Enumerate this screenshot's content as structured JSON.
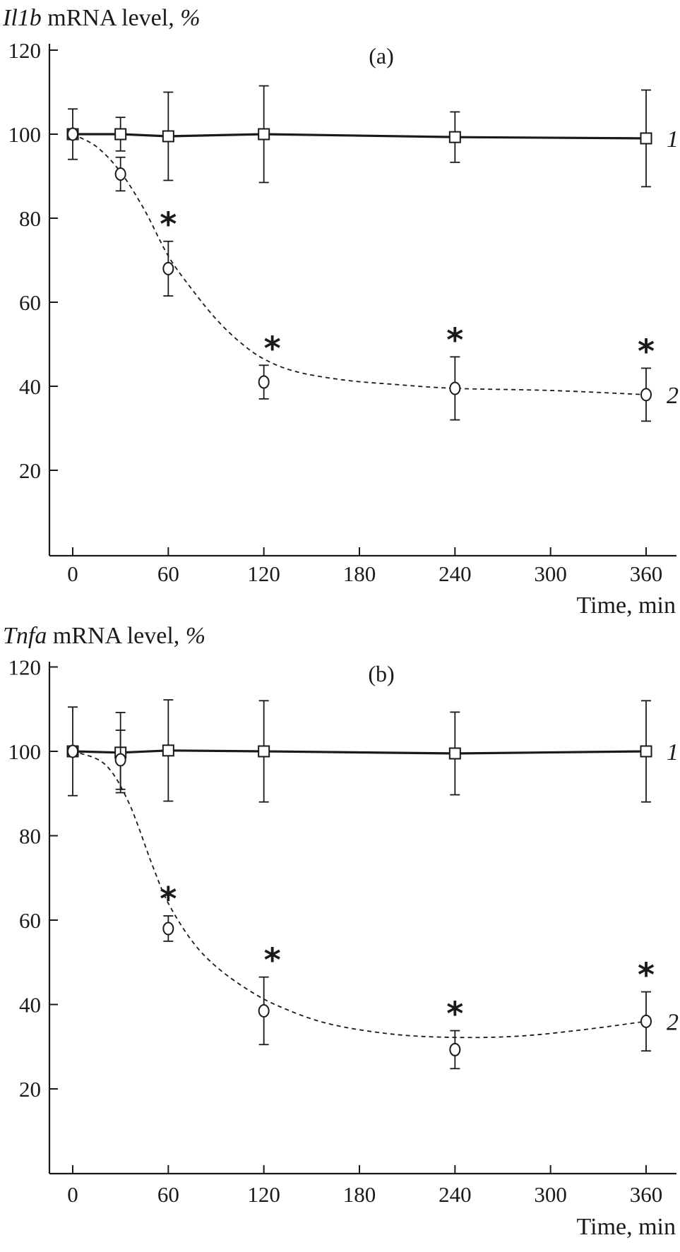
{
  "chart_data": [
    {
      "type": "line",
      "panel_label": "(a)",
      "ylabel_gene": "Il1b",
      "ylabel_rest": " mRNA level, %",
      "xlabel": "Time, min",
      "xticks": [
        0,
        60,
        120,
        180,
        240,
        300,
        360
      ],
      "yticks": [
        20,
        40,
        60,
        80,
        100,
        120
      ],
      "xlim": [
        -15,
        380
      ],
      "ylim": [
        0,
        120
      ],
      "grid": false,
      "series": [
        {
          "name": "1",
          "marker": "square",
          "line": "solid",
          "x": [
            0,
            30,
            60,
            120,
            240,
            360
          ],
          "y": [
            100,
            100,
            99.5,
            100,
            99.3,
            99
          ],
          "err": [
            6,
            4,
            10.5,
            11.5,
            6,
            11.5
          ]
        },
        {
          "name": "2",
          "marker": "circle",
          "line": "dashed",
          "x": [
            0,
            30,
            60,
            120,
            240,
            360
          ],
          "y": [
            100,
            90.5,
            68,
            41,
            39.5,
            38
          ],
          "err": [
            0,
            4,
            6.5,
            4,
            7.5,
            6.3
          ],
          "fit": [
            [
              0,
              100
            ],
            [
              15,
              97
            ],
            [
              30,
              91
            ],
            [
              45,
              82
            ],
            [
              60,
              71
            ],
            [
              75,
              63
            ],
            [
              90,
              56
            ],
            [
              105,
              50.5
            ],
            [
              120,
              46.5
            ],
            [
              140,
              43.5
            ],
            [
              170,
              41.5
            ],
            [
              200,
              40.5
            ],
            [
              240,
              39.5
            ],
            [
              300,
              39
            ],
            [
              360,
              38
            ]
          ],
          "significant": [
            60,
            120,
            240,
            360
          ]
        }
      ],
      "significance_marker": "*"
    },
    {
      "type": "line",
      "panel_label": "(b)",
      "ylabel_gene": "Tnfa",
      "ylabel_rest": " mRNA level, %",
      "xlabel": "Time, min",
      "xticks": [
        0,
        60,
        120,
        180,
        240,
        300,
        360
      ],
      "yticks": [
        20,
        40,
        60,
        80,
        100,
        120
      ],
      "xlim": [
        -15,
        380
      ],
      "ylim": [
        0,
        120
      ],
      "grid": false,
      "series": [
        {
          "name": "1",
          "marker": "square",
          "line": "solid",
          "x": [
            0,
            30,
            60,
            120,
            240,
            360
          ],
          "y": [
            100,
            99.7,
            100.2,
            100,
            99.5,
            100
          ],
          "err": [
            10.5,
            9.5,
            12,
            12,
            9.8,
            12
          ]
        },
        {
          "name": "2",
          "marker": "circle",
          "line": "dashed",
          "x": [
            0,
            30,
            60,
            120,
            240,
            360
          ],
          "y": [
            100,
            98,
            58,
            38.5,
            29.3,
            36
          ],
          "err": [
            0,
            7,
            3,
            8,
            4.5,
            7
          ],
          "fit": [
            [
              0,
              100
            ],
            [
              20,
              97
            ],
            [
              35,
              88
            ],
            [
              50,
              73
            ],
            [
              60,
              64
            ],
            [
              75,
              55
            ],
            [
              90,
              49
            ],
            [
              110,
              43.5
            ],
            [
              130,
              39.5
            ],
            [
              160,
              35.5
            ],
            [
              200,
              33
            ],
            [
              240,
              32.2
            ],
            [
              280,
              32.5
            ],
            [
              320,
              34
            ],
            [
              360,
              36
            ]
          ],
          "significant": [
            60,
            120,
            240,
            360
          ]
        }
      ],
      "significance_marker": "*"
    }
  ]
}
